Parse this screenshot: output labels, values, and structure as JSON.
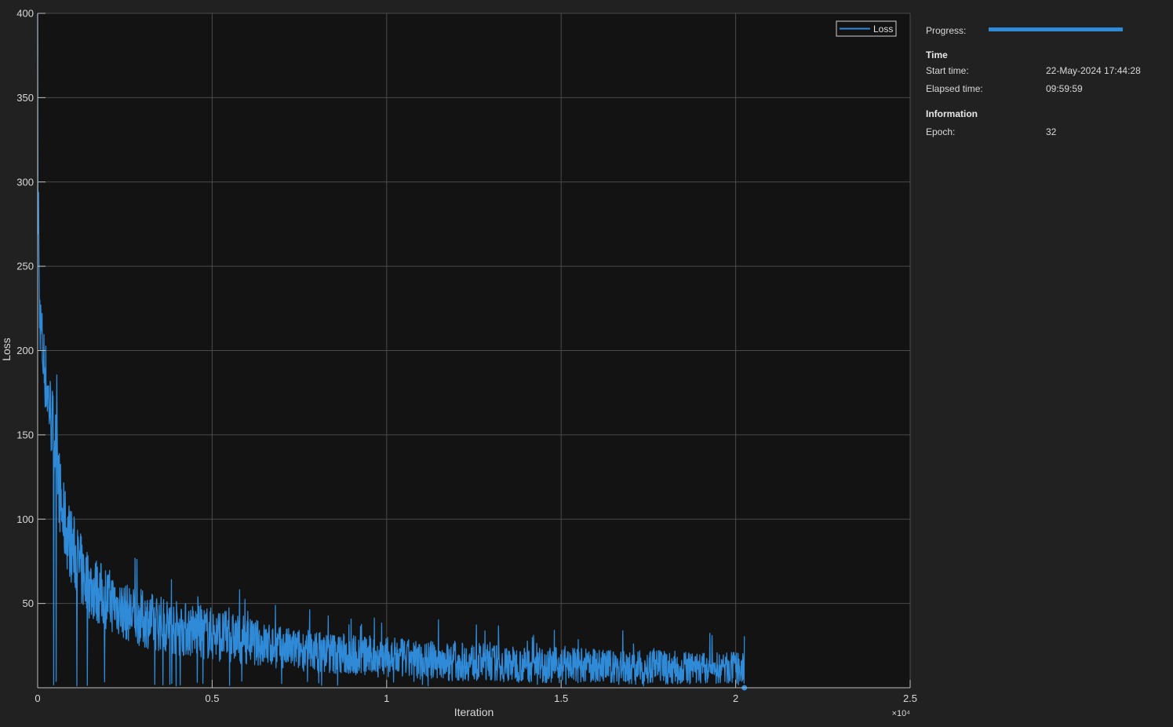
{
  "chart_data": {
    "type": "line",
    "title": "",
    "xlabel": "Iteration",
    "ylabel": "Loss",
    "xlim": [
      0,
      25000
    ],
    "ylim": [
      0,
      400
    ],
    "x_exponent_label": "×10⁴",
    "xticks": [
      0,
      5000,
      10000,
      15000,
      20000,
      25000
    ],
    "xtick_labels": [
      "0",
      "0.5",
      "1",
      "1.5",
      "2",
      "2.5"
    ],
    "yticks": [
      50,
      100,
      150,
      200,
      250,
      300,
      350,
      400
    ],
    "ytick_labels": [
      "50",
      "100",
      "150",
      "200",
      "250",
      "300",
      "350",
      "400"
    ],
    "grid": true,
    "legend": "top-right",
    "series": [
      {
        "name": "Loss",
        "color": "#2f8ad8",
        "envelope_x": [
          0,
          50,
          150,
          300,
          500,
          700,
          1000,
          1300,
          1500,
          2000,
          2500,
          3000,
          4000,
          5000,
          6000,
          7000,
          8000,
          9000,
          10000,
          11000,
          12000,
          13000,
          14000,
          15000,
          16000,
          17000,
          18000,
          19000,
          20000,
          20250
        ],
        "envelope_high": [
          400,
          245,
          220,
          195,
          170,
          125,
          105,
          88,
          80,
          72,
          62,
          58,
          52,
          48,
          42,
          36,
          34,
          32,
          30,
          28,
          27,
          26,
          24,
          24,
          23,
          22,
          22,
          21,
          21,
          20
        ],
        "envelope_low": [
          250,
          205,
          175,
          150,
          120,
          78,
          60,
          45,
          40,
          34,
          28,
          24,
          19,
          16,
          14,
          11,
          9,
          7,
          6,
          5,
          4,
          4,
          3,
          3,
          3,
          2,
          2,
          2,
          2,
          1
        ],
        "last_point": [
          20250,
          0
        ]
      }
    ]
  },
  "panel": {
    "progress_label": "Progress:",
    "progress_fraction": 1.0,
    "time_heading": "Time",
    "start_time_label": "Start time:",
    "start_time_value": "22-May-2024 17:44:28",
    "elapsed_time_label": "Elapsed time:",
    "elapsed_time_value": "09:59:59",
    "info_heading": "Information",
    "epoch_label": "Epoch:",
    "epoch_value": "32"
  }
}
